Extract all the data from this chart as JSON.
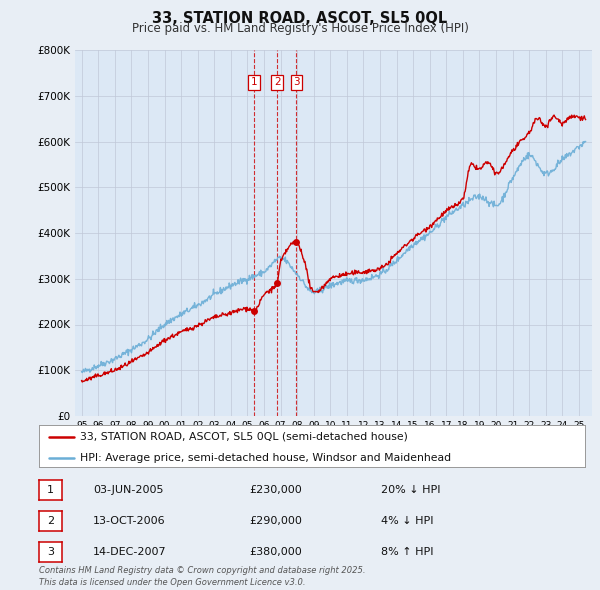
{
  "title_line1": "33, STATION ROAD, ASCOT, SL5 0QL",
  "title_line2": "Price paid vs. HM Land Registry's House Price Index (HPI)",
  "background_color": "#e8eef5",
  "plot_bg_color": "#dce8f5",
  "legend_label_red": "33, STATION ROAD, ASCOT, SL5 0QL (semi-detached house)",
  "legend_label_blue": "HPI: Average price, semi-detached house, Windsor and Maidenhead",
  "transactions": [
    {
      "num": 1,
      "date": "03-JUN-2005",
      "price": 230000,
      "pct": "20%",
      "dir": "↓",
      "x": 2005.42
    },
    {
      "num": 2,
      "date": "13-OCT-2006",
      "price": 290000,
      "pct": "4%",
      "dir": "↓",
      "x": 2006.79
    },
    {
      "num": 3,
      "date": "14-DEC-2007",
      "price": 380000,
      "pct": "8%",
      "dir": "↑",
      "x": 2007.96
    }
  ],
  "footnote": "Contains HM Land Registry data © Crown copyright and database right 2025.\nThis data is licensed under the Open Government Licence v3.0.",
  "hpi_color": "#6baed6",
  "price_color": "#cc0000",
  "vline_color": "#cc0000",
  "ylim": [
    0,
    800000
  ],
  "yticks": [
    0,
    100000,
    200000,
    300000,
    400000,
    500000,
    600000,
    700000,
    800000
  ],
  "ytick_labels": [
    "£0",
    "£100K",
    "£200K",
    "£300K",
    "£400K",
    "£500K",
    "£600K",
    "£700K",
    "£800K"
  ],
  "hpi_anchors_x": [
    1995,
    1996,
    1997,
    1998,
    1999,
    2000,
    2001,
    2002,
    2003,
    2004,
    2005,
    2006,
    2007,
    2008,
    2009,
    2010,
    2011,
    2012,
    2013,
    2014,
    2015,
    2016,
    2017,
    2018,
    2019,
    2020,
    2021,
    2022,
    2023,
    2024,
    2025.4
  ],
  "hpi_anchors_y": [
    95000,
    110000,
    125000,
    145000,
    168000,
    200000,
    222000,
    242000,
    265000,
    285000,
    300000,
    315000,
    345000,
    310000,
    270000,
    285000,
    295000,
    298000,
    310000,
    340000,
    375000,
    400000,
    435000,
    460000,
    480000,
    460000,
    520000,
    570000,
    530000,
    560000,
    600000
  ],
  "price_anchors_x": [
    1995,
    1996,
    1997,
    1998,
    1999,
    2000,
    2001,
    2002,
    2003,
    2004,
    2005,
    2005.42,
    2006,
    2006.79,
    2007,
    2007.96,
    2008.3,
    2009,
    2009.5,
    2010,
    2011,
    2012,
    2013,
    2014,
    2015,
    2016,
    2017,
    2018,
    2018.5,
    2019,
    2019.5,
    2020,
    2021,
    2022,
    2022.5,
    2023,
    2023.5,
    2024,
    2024.5,
    2025.4
  ],
  "price_anchors_y": [
    75000,
    88000,
    100000,
    118000,
    138000,
    165000,
    183000,
    198000,
    215000,
    225000,
    235000,
    230000,
    265000,
    290000,
    335000,
    380000,
    355000,
    270000,
    280000,
    300000,
    310000,
    315000,
    322000,
    355000,
    388000,
    415000,
    448000,
    475000,
    550000,
    540000,
    555000,
    530000,
    580000,
    620000,
    650000,
    635000,
    655000,
    640000,
    655000,
    650000
  ]
}
